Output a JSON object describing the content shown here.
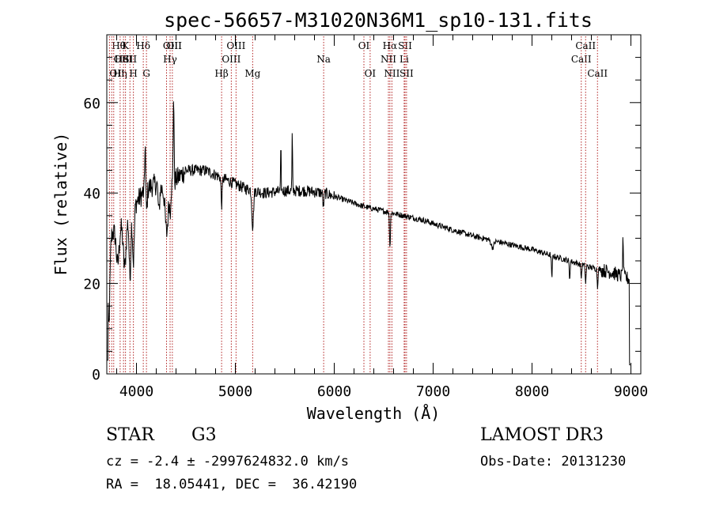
{
  "chart_data": {
    "type": "line",
    "title": "spec-56657-M31020N36M1_sp10-131.fits",
    "xlabel": "Wavelength (Å)",
    "ylabel": "Flux (relative)",
    "xlim": [
      3700,
      9100
    ],
    "ylim": [
      0,
      75
    ],
    "x_ticks": [
      4000,
      5000,
      6000,
      7000,
      8000,
      9000
    ],
    "x_tick_labels": [
      "4000",
      "5000",
      "6000",
      "7000",
      "8000",
      "9000"
    ],
    "y_ticks": [
      0,
      20,
      40,
      60
    ],
    "y_tick_labels": [
      "0",
      "20",
      "40",
      "60"
    ],
    "grid": false,
    "line_color": "#000000",
    "marker_color": "#b22222",
    "continuum": {
      "x": [
        3700,
        3800,
        3900,
        4000,
        4100,
        4200,
        4300,
        4400,
        4500,
        4700,
        4900,
        5100,
        5300,
        5500,
        5700,
        5900,
        6100,
        6300,
        6500,
        6700,
        6900,
        7100,
        7400,
        7700,
        8000,
        8300,
        8600,
        8800,
        8980
      ],
      "y": [
        30,
        32,
        34,
        38,
        41,
        42,
        40,
        43,
        45,
        45,
        43,
        41,
        40,
        40.5,
        40.5,
        40,
        38.5,
        37,
        36,
        35,
        34,
        32.5,
        30.5,
        29,
        27.5,
        25.5,
        23.5,
        22.5,
        21
      ]
    },
    "absorption_features": [
      {
        "x": 3720,
        "depth": 20,
        "width": 15
      },
      {
        "x": 3810,
        "depth": 8,
        "width": 20
      },
      {
        "x": 3880,
        "depth": 10,
        "width": 20
      },
      {
        "x": 3934,
        "depth": 14,
        "width": 12
      },
      {
        "x": 3969,
        "depth": 12,
        "width": 12
      },
      {
        "x": 4101,
        "depth": 5,
        "width": 10
      },
      {
        "x": 4226,
        "depth": 6,
        "width": 10
      },
      {
        "x": 4305,
        "depth": 9,
        "width": 20
      },
      {
        "x": 4340,
        "depth": 5,
        "width": 8
      },
      {
        "x": 4861,
        "depth": 6,
        "width": 8
      },
      {
        "x": 5175,
        "depth": 8,
        "width": 12
      },
      {
        "x": 5890,
        "depth": 3,
        "width": 8
      },
      {
        "x": 6563,
        "depth": 8,
        "width": 6
      },
      {
        "x": 7600,
        "depth": 1.5,
        "width": 20
      },
      {
        "x": 8498,
        "depth": 3,
        "width": 6
      },
      {
        "x": 8542,
        "depth": 4,
        "width": 6
      },
      {
        "x": 8662,
        "depth": 4,
        "width": 6
      },
      {
        "x": 8200,
        "depth": 5,
        "width": 6
      },
      {
        "x": 8380,
        "depth": 4,
        "width": 6
      }
    ],
    "emission_features": [
      {
        "x": 4088,
        "height": 12,
        "width": 6
      },
      {
        "x": 4375,
        "height": 20,
        "width": 6
      },
      {
        "x": 5460,
        "height": 10,
        "width": 4
      },
      {
        "x": 5575,
        "height": 13,
        "width": 4
      },
      {
        "x": 8920,
        "height": 8,
        "width": 6
      }
    ],
    "line_markers": [
      {
        "wavelength": 3727,
        "label": "OII",
        "row": 2,
        "anchor": "start"
      },
      {
        "wavelength": 3750,
        "label": "Hθ",
        "row": 0,
        "anchor": "start"
      },
      {
        "wavelength": 3770,
        "label": "OII",
        "row": 1,
        "anchor": "start"
      },
      {
        "wavelength": 3835,
        "label": "Hη",
        "row": 2,
        "anchor": "middle"
      },
      {
        "wavelength": 3869,
        "label": "HeI",
        "row": 1,
        "anchor": "middle"
      },
      {
        "wavelength": 3889,
        "label": "K",
        "row": 0,
        "anchor": "middle"
      },
      {
        "wavelength": 3934,
        "label": "SII",
        "row": 1,
        "anchor": "middle"
      },
      {
        "wavelength": 3969,
        "label": "H",
        "row": 2,
        "anchor": "middle"
      },
      {
        "wavelength": 4069,
        "label": "Hδ",
        "row": 0,
        "anchor": "middle"
      },
      {
        "wavelength": 4101,
        "label": "G",
        "row": 2,
        "anchor": "middle"
      },
      {
        "wavelength": 4304,
        "label": "OII",
        "row": 0,
        "anchor": "start"
      },
      {
        "wavelength": 4340,
        "label": "Hγ",
        "row": 1,
        "anchor": "middle"
      },
      {
        "wavelength": 4363,
        "label": "OIII",
        "row": 0,
        "anchor": "middle"
      },
      {
        "wavelength": 4861,
        "label": "Hβ",
        "row": 2,
        "anchor": "middle"
      },
      {
        "wavelength": 4959,
        "label": "OIII",
        "row": 1,
        "anchor": "middle"
      },
      {
        "wavelength": 5007,
        "label": "OIII",
        "row": 0,
        "anchor": "middle"
      },
      {
        "wavelength": 5175,
        "label": "Mg",
        "row": 2,
        "anchor": "middle"
      },
      {
        "wavelength": 5893,
        "label": "Na",
        "row": 1,
        "anchor": "middle"
      },
      {
        "wavelength": 6300,
        "label": "OI",
        "row": 0,
        "anchor": "middle"
      },
      {
        "wavelength": 6363,
        "label": "OI",
        "row": 2,
        "anchor": "middle"
      },
      {
        "wavelength": 6548,
        "label": "NII",
        "row": 1,
        "anchor": "middle"
      },
      {
        "wavelength": 6563,
        "label": "Hα",
        "row": 0,
        "anchor": "middle"
      },
      {
        "wavelength": 6583,
        "label": "NII",
        "row": 2,
        "anchor": "middle"
      },
      {
        "wavelength": 6707,
        "label": "Li",
        "row": 1,
        "anchor": "middle"
      },
      {
        "wavelength": 6716,
        "label": "SII",
        "row": 0,
        "anchor": "middle"
      },
      {
        "wavelength": 6731,
        "label": "SII",
        "row": 2,
        "anchor": "middle"
      },
      {
        "wavelength": 8498,
        "label": "CaII",
        "row": 1,
        "anchor": "middle"
      },
      {
        "wavelength": 8542,
        "label": "CaII",
        "row": 0,
        "anchor": "middle"
      },
      {
        "wavelength": 8662,
        "label": "CaII",
        "row": 2,
        "anchor": "middle"
      }
    ]
  },
  "info": {
    "object_class": "STAR",
    "subclass": "G3",
    "survey": "LAMOST DR3",
    "redshift": "cz = -2.4 ± -2997624832.0 km/s",
    "obs_date": "Obs-Date: 20131230",
    "coords": "RA =  18.05441, DEC =  36.42190"
  }
}
